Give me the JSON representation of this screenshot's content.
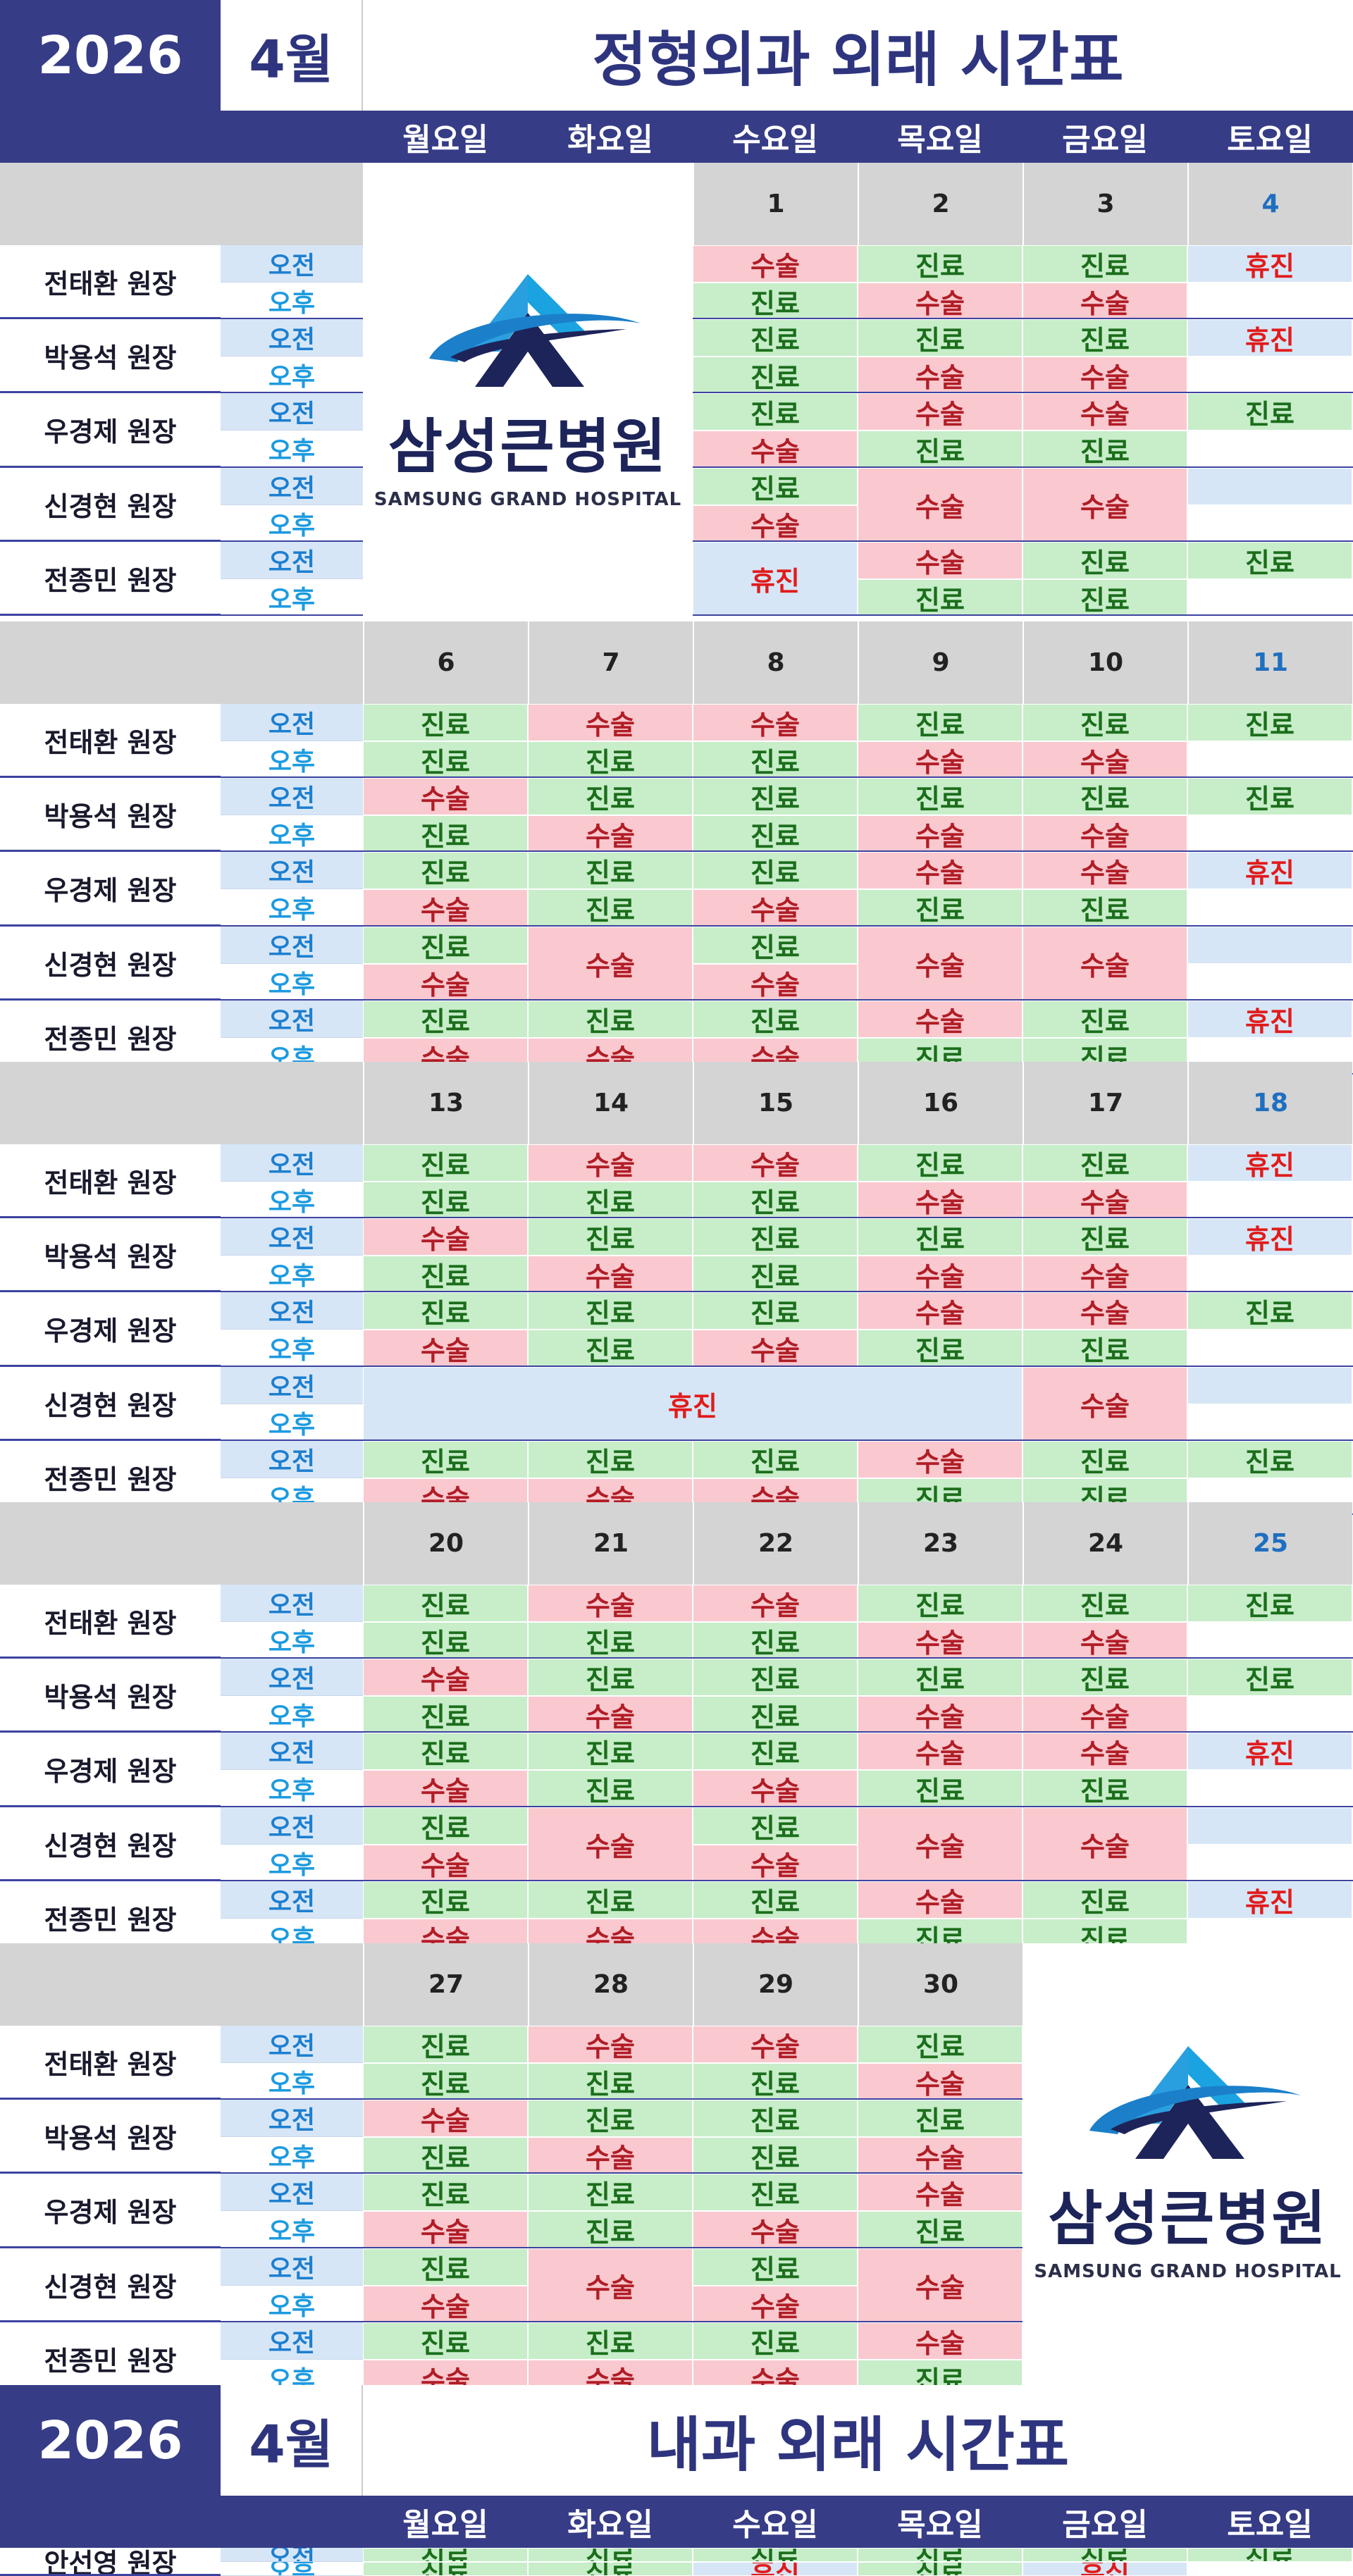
{
  "ortho": {
    "year": "2026",
    "month": "4월",
    "title": "정형외과 외래 시간표",
    "days": [
      "월요일",
      "화요일",
      "수요일",
      "목요일",
      "금요일",
      "토요일"
    ],
    "am": "오전",
    "pm": "오후",
    "doctors": [
      "전태환 원장",
      "박용석 원장",
      "우경제 원장",
      "신경현 원장",
      "전종민 원장"
    ],
    "weeks": [
      {
        "dates": [
          "",
          "",
          "1",
          "2",
          "3",
          "4"
        ],
        "rows": [
          [
            [
              "",
              "",
              ""
            ],
            [
              "",
              ""
            ],
            [
              "수술",
              "진료"
            ],
            [
              "진료",
              "수술"
            ],
            [
              "진료",
              "수술"
            ],
            [
              "휴진",
              ""
            ]
          ],
          [
            [
              "",
              ""
            ],
            [
              "",
              ""
            ],
            [
              "진료",
              "진료"
            ],
            [
              "진료",
              "수술"
            ],
            [
              "진료",
              "수술"
            ],
            [
              "휴진",
              ""
            ]
          ],
          [
            [
              "",
              ""
            ],
            [
              "",
              ""
            ],
            [
              "진료",
              "수술"
            ],
            [
              "수술",
              "진료"
            ],
            [
              "수술",
              "진료"
            ],
            [
              "진료",
              ""
            ]
          ],
          [
            [
              "",
              ""
            ],
            [
              "",
              ""
            ],
            [
              "진료",
              "수술"
            ],
            [
              "수술"
            ],
            [
              "수술"
            ],
            [
              "",
              ""
            ]
          ],
          [
            [
              "",
              ""
            ],
            [
              "",
              ""
            ],
            [
              "휴진"
            ],
            [
              "수술",
              "진료"
            ],
            [
              "진료",
              "진료"
            ],
            [
              "진료",
              ""
            ]
          ]
        ]
      },
      {
        "dates": [
          "6",
          "7",
          "8",
          "9",
          "10",
          "11"
        ],
        "rows": [
          [
            [
              "진료",
              "진료"
            ],
            [
              "수술",
              "진료"
            ],
            [
              "수술",
              "진료"
            ],
            [
              "진료",
              "수술"
            ],
            [
              "진료",
              "수술"
            ],
            [
              "진료",
              ""
            ]
          ],
          [
            [
              "수술",
              "진료"
            ],
            [
              "진료",
              "수술"
            ],
            [
              "진료",
              "진료"
            ],
            [
              "진료",
              "수술"
            ],
            [
              "진료",
              "수술"
            ],
            [
              "진료",
              ""
            ]
          ],
          [
            [
              "진료",
              "수술"
            ],
            [
              "진료",
              "진료"
            ],
            [
              "진료",
              "수술"
            ],
            [
              "수술",
              "진료"
            ],
            [
              "수술",
              "진료"
            ],
            [
              "휴진",
              ""
            ]
          ],
          [
            [
              "진료",
              "수술"
            ],
            [
              "수술"
            ],
            [
              "진료",
              "수술"
            ],
            [
              "수술"
            ],
            [
              "수술"
            ],
            [
              "",
              ""
            ]
          ],
          [
            [
              "진료",
              "수술"
            ],
            [
              "진료",
              "수술"
            ],
            [
              "진료",
              "수술"
            ],
            [
              "수술",
              "진료"
            ],
            [
              "진료",
              "진료"
            ],
            [
              "휴진",
              ""
            ]
          ]
        ]
      },
      {
        "dates": [
          "13",
          "14",
          "15",
          "16",
          "17",
          "18"
        ],
        "rows": [
          [
            [
              "진료",
              "진료"
            ],
            [
              "수술",
              "진료"
            ],
            [
              "수술",
              "진료"
            ],
            [
              "진료",
              "수술"
            ],
            [
              "진료",
              "수술"
            ],
            [
              "휴진",
              ""
            ]
          ],
          [
            [
              "수술",
              "진료"
            ],
            [
              "진료",
              "수술"
            ],
            [
              "진료",
              "진료"
            ],
            [
              "진료",
              "수술"
            ],
            [
              "진료",
              "수술"
            ],
            [
              "휴진",
              ""
            ]
          ],
          [
            [
              "진료",
              "수술"
            ],
            [
              "진료",
              "진료"
            ],
            [
              "진료",
              "수술"
            ],
            [
              "수술",
              "진료"
            ],
            [
              "수술",
              "진료"
            ],
            [
              "진료",
              ""
            ]
          ],
          [
            [
              "휴진"
            ],
            [
              "휴진"
            ],
            [
              "휴진"
            ],
            [
              "휴진"
            ],
            [
              "수술"
            ],
            [
              "",
              ""
            ]
          ],
          [
            [
              "진료",
              "수술"
            ],
            [
              "진료",
              "수술"
            ],
            [
              "진료",
              "수술"
            ],
            [
              "수술",
              "진료"
            ],
            [
              "진료",
              "진료"
            ],
            [
              "진료",
              ""
            ]
          ]
        ]
      },
      {
        "dates": [
          "20",
          "21",
          "22",
          "23",
          "24",
          "25"
        ],
        "rows": [
          [
            [
              "진료",
              "진료"
            ],
            [
              "수술",
              "진료"
            ],
            [
              "수술",
              "진료"
            ],
            [
              "진료",
              "수술"
            ],
            [
              "진료",
              "수술"
            ],
            [
              "진료",
              ""
            ]
          ],
          [
            [
              "수술",
              "진료"
            ],
            [
              "진료",
              "수술"
            ],
            [
              "진료",
              "진료"
            ],
            [
              "진료",
              "수술"
            ],
            [
              "진료",
              "수술"
            ],
            [
              "진료",
              ""
            ]
          ],
          [
            [
              "진료",
              "수술"
            ],
            [
              "진료",
              "진료"
            ],
            [
              "진료",
              "수술"
            ],
            [
              "수술",
              "진료"
            ],
            [
              "수술",
              "진료"
            ],
            [
              "휴진",
              ""
            ]
          ],
          [
            [
              "진료",
              "수술"
            ],
            [
              "수술"
            ],
            [
              "진료",
              "수술"
            ],
            [
              "수술"
            ],
            [
              "수술"
            ],
            [
              "",
              ""
            ]
          ],
          [
            [
              "진료",
              "수술"
            ],
            [
              "진료",
              "수술"
            ],
            [
              "진료",
              "수술"
            ],
            [
              "수술",
              "진료"
            ],
            [
              "진료",
              "진료"
            ],
            [
              "휴진",
              ""
            ]
          ]
        ]
      },
      {
        "dates": [
          "27",
          "28",
          "29",
          "30",
          "",
          ""
        ],
        "rows": [
          [
            [
              "진료",
              "진료"
            ],
            [
              "수술",
              "진료"
            ],
            [
              "수술",
              "진료"
            ],
            [
              "진료",
              "수술"
            ]
          ],
          [
            [
              "수술",
              "진료"
            ],
            [
              "진료",
              "수술"
            ],
            [
              "진료",
              "진료"
            ],
            [
              "진료",
              "수술"
            ]
          ],
          [
            [
              "진료",
              "수술"
            ],
            [
              "진료",
              "진료"
            ],
            [
              "진료",
              "수술"
            ],
            [
              "수술",
              "진료"
            ]
          ],
          [
            [
              "진료",
              "수술"
            ],
            [
              "수술"
            ],
            [
              "진료",
              "수술"
            ],
            [
              "수술"
            ]
          ],
          [
            [
              "진료",
              "수술"
            ],
            [
              "진료",
              "수술"
            ],
            [
              "진료",
              "수술"
            ],
            [
              "수술",
              "진료"
            ]
          ]
        ]
      }
    ]
  },
  "logo": {
    "name_ko": "삼성큰병원",
    "name_en": "SAMSUNG GRAND HOSPITAL"
  },
  "internal": {
    "year": "2026",
    "month": "4월",
    "title": "내과 외래 시간표",
    "days": [
      "월요일",
      "화요일",
      "수요일",
      "목요일",
      "금요일",
      "토요일"
    ],
    "doctor": "안선영 원장",
    "am": "오전",
    "pm": "오후",
    "am_values": [
      "진료",
      "진료",
      "진료",
      "진료",
      "진료",
      "진료"
    ],
    "pm_values": [
      "진료",
      "진료",
      "휴진",
      "진료",
      "휴진",
      ""
    ]
  },
  "colors": {
    "navy": "#363c86",
    "title_navy": "#2e357e",
    "clinic_green": "#c7edc9",
    "surgery_pink": "#f9c9cf",
    "closed_blue": "#d6e6f6",
    "date_gray": "#d4d4d4"
  }
}
